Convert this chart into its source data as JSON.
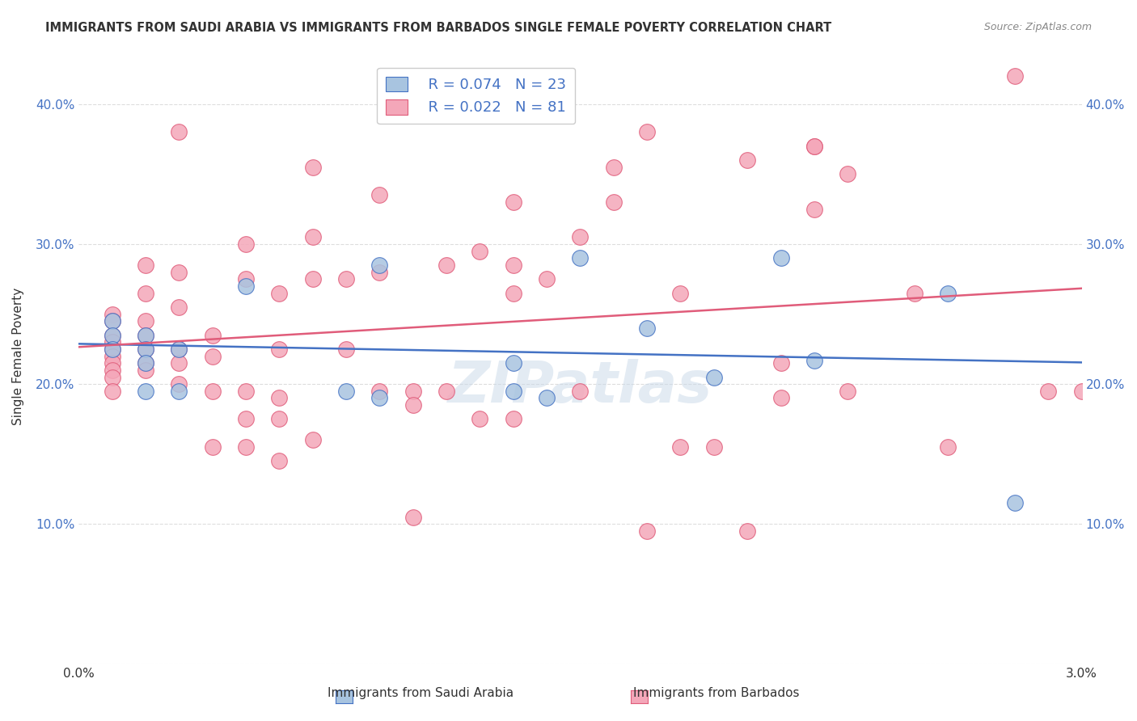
{
  "title": "IMMIGRANTS FROM SAUDI ARABIA VS IMMIGRANTS FROM BARBADOS SINGLE FEMALE POVERTY CORRELATION CHART",
  "source": "Source: ZipAtlas.com",
  "xlabel_saudi": "Immigrants from Saudi Arabia",
  "xlabel_barbados": "Immigrants from Barbados",
  "ylabel": "Single Female Poverty",
  "xlim": [
    0.0,
    0.03
  ],
  "ylim": [
    0.0,
    0.44
  ],
  "xticks": [
    0.0,
    0.005,
    0.01,
    0.015,
    0.02,
    0.025,
    0.03
  ],
  "xtick_labels": [
    "0.0%",
    "",
    "",
    "",
    "",
    "",
    "3.0%"
  ],
  "yticks": [
    0.0,
    0.1,
    0.2,
    0.3,
    0.4
  ],
  "ytick_labels": [
    "",
    "10.0%",
    "20.0%",
    "30.0%",
    "40.0%"
  ],
  "legend_r_saudi": "R = 0.074",
  "legend_n_saudi": "N = 23",
  "legend_r_barbados": "R = 0.022",
  "legend_n_barbados": "N = 81",
  "saudi_color": "#a8c4e0",
  "barbados_color": "#f4a7b9",
  "saudi_line_color": "#4472c4",
  "barbados_line_color": "#e05c7a",
  "watermark": "ZIPatlas",
  "saudi_x": [
    0.001,
    0.001,
    0.001,
    0.002,
    0.002,
    0.002,
    0.002,
    0.003,
    0.003,
    0.005,
    0.008,
    0.009,
    0.009,
    0.013,
    0.013,
    0.014,
    0.015,
    0.017,
    0.019,
    0.021,
    0.022,
    0.026,
    0.028
  ],
  "saudi_y": [
    0.245,
    0.235,
    0.225,
    0.235,
    0.225,
    0.215,
    0.195,
    0.225,
    0.195,
    0.27,
    0.195,
    0.285,
    0.19,
    0.215,
    0.195,
    0.19,
    0.29,
    0.24,
    0.205,
    0.29,
    0.217,
    0.265,
    0.115
  ],
  "barbados_x": [
    0.001,
    0.001,
    0.001,
    0.001,
    0.001,
    0.001,
    0.001,
    0.001,
    0.001,
    0.001,
    0.002,
    0.002,
    0.002,
    0.002,
    0.002,
    0.002,
    0.002,
    0.003,
    0.003,
    0.003,
    0.003,
    0.003,
    0.003,
    0.004,
    0.004,
    0.004,
    0.004,
    0.005,
    0.005,
    0.005,
    0.005,
    0.005,
    0.006,
    0.006,
    0.006,
    0.006,
    0.006,
    0.007,
    0.007,
    0.007,
    0.007,
    0.008,
    0.008,
    0.009,
    0.009,
    0.009,
    0.01,
    0.01,
    0.01,
    0.011,
    0.011,
    0.012,
    0.012,
    0.013,
    0.013,
    0.013,
    0.013,
    0.014,
    0.015,
    0.015,
    0.016,
    0.016,
    0.017,
    0.017,
    0.018,
    0.018,
    0.019,
    0.02,
    0.02,
    0.021,
    0.021,
    0.022,
    0.022,
    0.022,
    0.023,
    0.023,
    0.025,
    0.026,
    0.028,
    0.029,
    0.03
  ],
  "barbados_y": [
    0.25,
    0.245,
    0.235,
    0.23,
    0.225,
    0.22,
    0.215,
    0.21,
    0.205,
    0.195,
    0.285,
    0.265,
    0.245,
    0.235,
    0.225,
    0.215,
    0.21,
    0.38,
    0.28,
    0.255,
    0.225,
    0.215,
    0.2,
    0.235,
    0.22,
    0.195,
    0.155,
    0.3,
    0.275,
    0.195,
    0.175,
    0.155,
    0.265,
    0.225,
    0.19,
    0.175,
    0.145,
    0.355,
    0.305,
    0.275,
    0.16,
    0.275,
    0.225,
    0.335,
    0.28,
    0.195,
    0.195,
    0.185,
    0.105,
    0.285,
    0.195,
    0.295,
    0.175,
    0.33,
    0.285,
    0.265,
    0.175,
    0.275,
    0.305,
    0.195,
    0.355,
    0.33,
    0.38,
    0.095,
    0.265,
    0.155,
    0.155,
    0.36,
    0.095,
    0.215,
    0.19,
    0.325,
    0.37,
    0.37,
    0.35,
    0.195,
    0.265,
    0.155,
    0.42,
    0.195,
    0.195
  ],
  "grid_color": "#dddddd",
  "background_color": "#ffffff"
}
